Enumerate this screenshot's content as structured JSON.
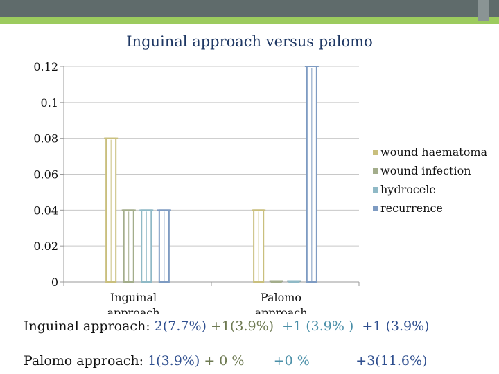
{
  "chart_data": {
    "type": "bar",
    "title": "Inguinal approach versus palomo",
    "categories": [
      "Inguinal\napproach",
      "Palomo\napproach"
    ],
    "series": [
      {
        "name": "wound haematoma",
        "values": [
          0.08,
          0.04
        ],
        "color": "#c9bf7d"
      },
      {
        "name": "wound infection",
        "values": [
          0.04,
          0.0
        ],
        "color": "#a3ad8b"
      },
      {
        "name": "hydrocele",
        "values": [
          0.04,
          0.0
        ],
        "color": "#8fb9c6"
      },
      {
        "name": "recurrence",
        "values": [
          0.04,
          0.12
        ],
        "color": "#7e9bc2"
      }
    ],
    "yticks": [
      "0",
      "0.02",
      "0.04",
      "0.06",
      "0.08",
      "0.1",
      "0.12"
    ],
    "ylim": [
      0,
      0.12
    ],
    "legend_position": "right",
    "grid": true
  },
  "summary": {
    "inguinal": {
      "label": "Inguinal approach: ",
      "parts": [
        {
          "text": "2(7.7%) ",
          "color": "#2f4f8f"
        },
        {
          "text": "+1(3.9%)  ",
          "color": "#6e7a52"
        },
        {
          "text": "+1 (3.9% )  ",
          "color": "#4a8fa8"
        },
        {
          "text": "+1 (3.9%)",
          "color": "#2f4f8f"
        }
      ]
    },
    "palomo": {
      "label": "Palomo approach: ",
      "parts": [
        {
          "text": "1(3.9%) ",
          "color": "#2f4f8f"
        },
        {
          "text": "+ 0 %       ",
          "color": "#6e7a52"
        },
        {
          "text": "+0 %           ",
          "color": "#4a8fa8"
        },
        {
          "text": "+3(11.6%)",
          "color": "#2f4f8f"
        }
      ]
    }
  }
}
